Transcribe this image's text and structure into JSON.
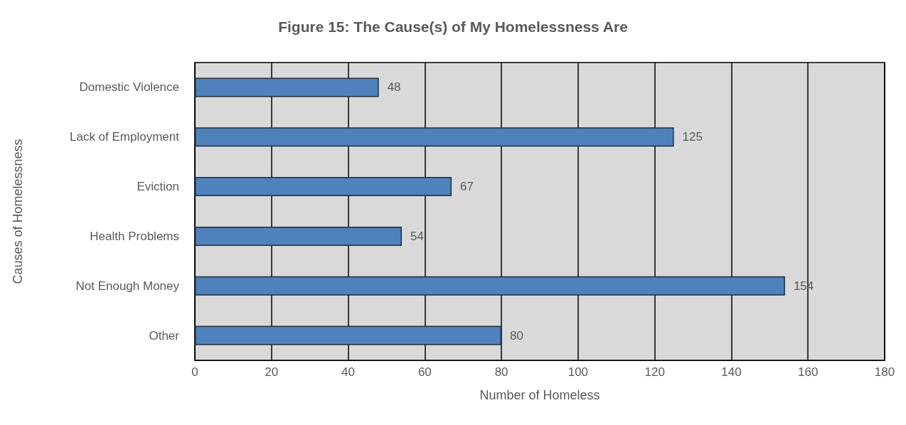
{
  "chart_data": {
    "type": "bar",
    "orientation": "horizontal",
    "title": "Figure 15: The Cause(s) of My Homelessness Are",
    "xlabel": "Number of Homeless",
    "ylabel": "Causes of Homelessness",
    "categories": [
      "Domestic Violence",
      "Lack of Employment",
      "Eviction",
      "Health Problems",
      "Not Enough Money",
      "Other"
    ],
    "values": [
      48,
      125,
      67,
      54,
      154,
      80
    ],
    "color": "#4f81bd",
    "data_labels": true,
    "xlim": [
      0,
      180
    ],
    "xticks": [
      0,
      20,
      40,
      60,
      80,
      100,
      120,
      140,
      160,
      180
    ],
    "grid": "x"
  }
}
